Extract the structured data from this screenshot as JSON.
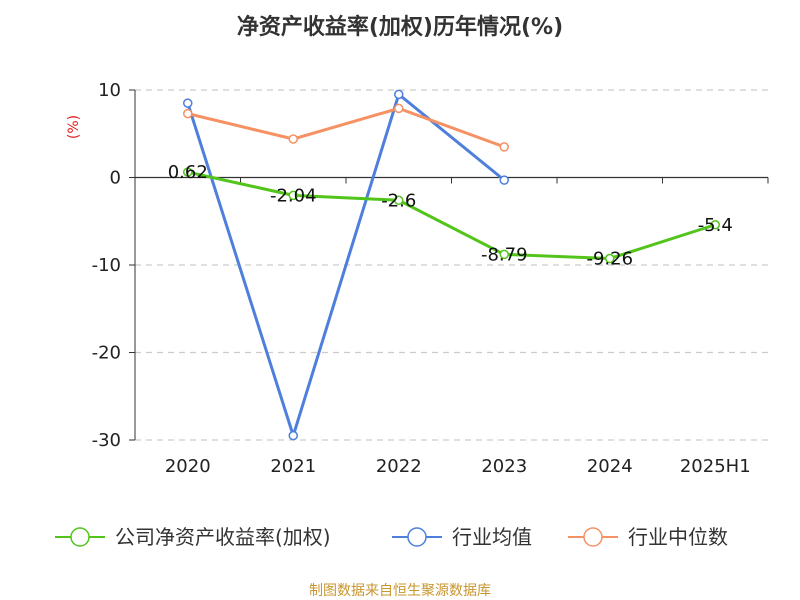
{
  "chart_data": {
    "type": "line",
    "title": "净资产收益率(加权)历年情况(%)",
    "ylabel": "(%)",
    "xlabel": "",
    "categories": [
      "2020",
      "2021",
      "2022",
      "2023",
      "2024",
      "2025H1"
    ],
    "ylim": [
      -30,
      10
    ],
    "yticks": [
      10,
      0,
      -10,
      -20,
      -30
    ],
    "grid": true,
    "legend_position": "bottom",
    "series": [
      {
        "name": "公司净资产收益率(加权)",
        "color": "#52c41a",
        "values": [
          0.62,
          -2.04,
          -2.6,
          -8.79,
          -9.26,
          -5.4
        ],
        "data_labels": [
          "0.62",
          "-2.04",
          "-2.6",
          "-8.79",
          "-9.26",
          "-5.4"
        ]
      },
      {
        "name": "行业均值",
        "color": "#4e7fdc",
        "values": [
          8.5,
          -29.5,
          9.5,
          -0.3,
          null,
          null
        ]
      },
      {
        "name": "行业中位数",
        "color": "#f59163",
        "values": [
          7.3,
          4.4,
          7.9,
          3.5,
          null,
          null
        ]
      }
    ]
  },
  "source": "制图数据来自恒生聚源数据库"
}
